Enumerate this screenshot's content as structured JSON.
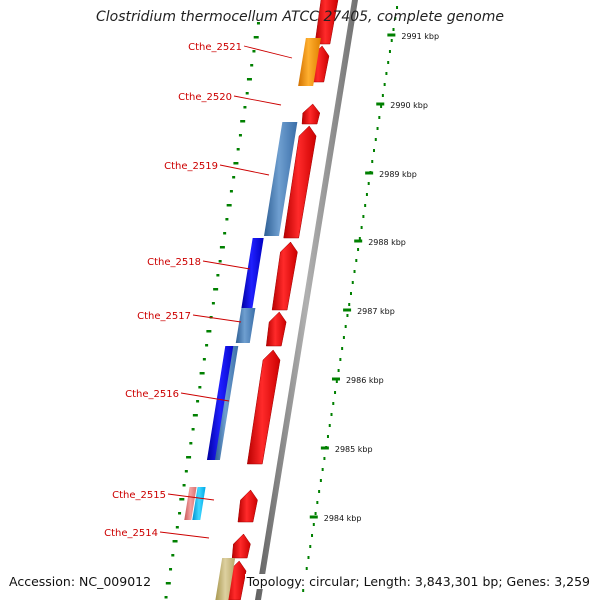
{
  "title": "Clostridium thermocellum ATCC 27405, complete genome",
  "footer": {
    "accession": "Accession: NC_009012",
    "summary": "Topology: circular; Length: 3,843,301 bp; Genes: 3,259"
  },
  "colors": {
    "label_text": "#cc0000",
    "backbone": "#808080",
    "forward_feature": "#ff0000",
    "tick": "#008000",
    "cds_orange": "#ff9900",
    "cds_steelblue": "#4f81bd",
    "cds_blue": "#0000e0",
    "cds_pink": "#f08080",
    "cds_cyan": "#00c0ff",
    "cds_khaki": "#c8b878"
  },
  "ruler": {
    "unit": "kbp",
    "labels": [
      "2991 kbp",
      "2990 kbp",
      "2989 kbp",
      "2988 kbp",
      "2987 kbp",
      "2986 kbp",
      "2985 kbp",
      "2984 kbp"
    ]
  },
  "genes": [
    {
      "label": "Cthe_2521"
    },
    {
      "label": "Cthe_2520"
    },
    {
      "label": "Cthe_2519"
    },
    {
      "label": "Cthe_2518"
    },
    {
      "label": "Cthe_2517"
    },
    {
      "label": "Cthe_2516"
    },
    {
      "label": "Cthe_2515"
    },
    {
      "label": "Cthe_2514"
    }
  ]
}
